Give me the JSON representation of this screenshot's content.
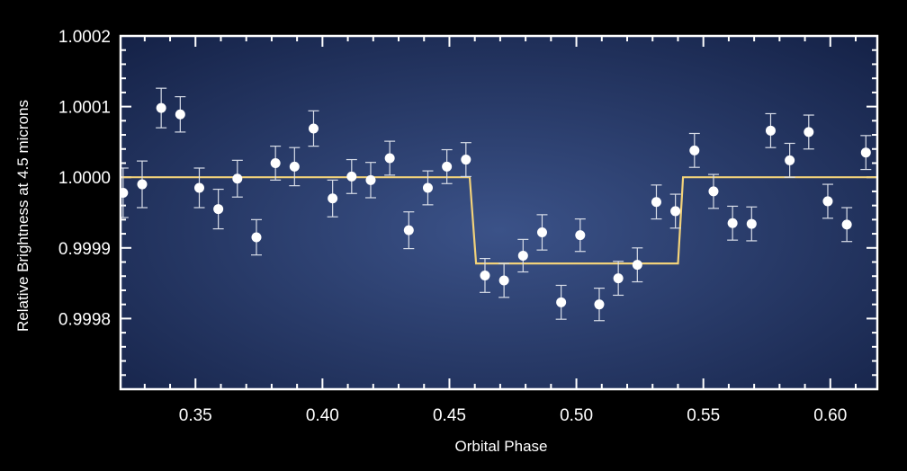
{
  "chart_data": {
    "type": "scatter",
    "title": "",
    "xlabel": "Orbital Phase",
    "ylabel": "Relative Brightness at 4.5 microns",
    "xlim": [
      0.3205,
      0.6185
    ],
    "ylim": [
      0.9997,
      1.0002
    ],
    "x_ticks": [
      0.35,
      0.4,
      0.45,
      0.5,
      0.55,
      0.6
    ],
    "x_tick_labels": [
      "0.35",
      "0.40",
      "0.45",
      "0.50",
      "0.55",
      "0.60"
    ],
    "y_ticks": [
      0.9998,
      0.9999,
      1.0,
      1.0001,
      1.0002
    ],
    "y_tick_labels": [
      "0.9998",
      "0.9999",
      "1.0000",
      "1.0001",
      "1.0002"
    ],
    "grid": false,
    "colors": {
      "background": "#000000",
      "plot_center": "#3b5288",
      "plot_edge": "#142146",
      "frame": "#ffffff",
      "points": "#ffffff",
      "model_line": "#f2d27a"
    },
    "series": [
      {
        "type": "errorbar",
        "x": [
          0.3215,
          0.329,
          0.3365,
          0.344,
          0.3515,
          0.359,
          0.3665,
          0.374,
          0.3815,
          0.389,
          0.3965,
          0.404,
          0.4115,
          0.419,
          0.4265,
          0.434,
          0.4415,
          0.449,
          0.4565,
          0.464,
          0.4715,
          0.479,
          0.4865,
          0.494,
          0.5015,
          0.509,
          0.5165,
          0.524,
          0.5315,
          0.539,
          0.5465,
          0.554,
          0.5615,
          0.569,
          0.5765,
          0.584,
          0.5915,
          0.599,
          0.6065,
          0.614
        ],
        "y": [
          0.999978,
          0.99999,
          1.000098,
          1.000089,
          0.999985,
          0.999955,
          0.999998,
          0.999915,
          1.00002,
          1.000015,
          1.000069,
          0.99997,
          1.000001,
          0.999996,
          1.000027,
          0.999925,
          0.999985,
          1.000015,
          1.000025,
          0.999861,
          0.999854,
          0.999889,
          0.999922,
          0.999823,
          0.999918,
          0.99982,
          0.999857,
          0.999876,
          0.999965,
          0.999952,
          1.000038,
          0.99998,
          0.999935,
          0.999934,
          1.000066,
          1.000024,
          1.000064,
          0.999966,
          0.999933,
          1.000035
        ],
        "yerr": [
          3.5e-05,
          3.3e-05,
          2.8e-05,
          2.5e-05,
          2.8e-05,
          2.8e-05,
          2.6e-05,
          2.5e-05,
          2.4e-05,
          2.7e-05,
          2.5e-05,
          2.6e-05,
          2.4e-05,
          2.5e-05,
          2.4e-05,
          2.6e-05,
          2.4e-05,
          2.4e-05,
          2.4e-05,
          2.4e-05,
          2.4e-05,
          2.3e-05,
          2.5e-05,
          2.4e-05,
          2.3e-05,
          2.3e-05,
          2.4e-05,
          2.4e-05,
          2.4e-05,
          2.4e-05,
          2.4e-05,
          2.4e-05,
          2.4e-05,
          2.4e-05,
          2.4e-05,
          2.4e-05,
          2.4e-05,
          2.4e-05,
          2.4e-05,
          2.4e-05
        ]
      },
      {
        "type": "line",
        "x": [
          0.3205,
          0.458,
          0.4605,
          0.54,
          0.542,
          0.6185
        ],
        "y": [
          1.0,
          1.0,
          0.999878,
          0.999878,
          1.0,
          1.0
        ]
      }
    ]
  }
}
